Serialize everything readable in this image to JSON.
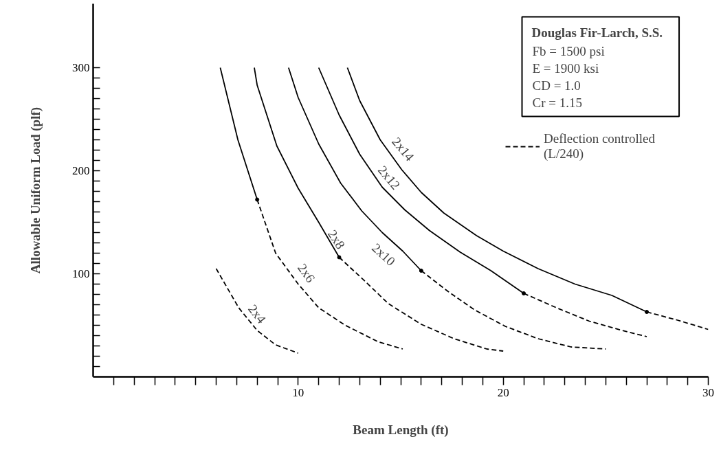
{
  "chart_data": {
    "type": "line",
    "xlabel": "Beam Length (ft)",
    "ylabel": "Allowable Uniform Load (plf)",
    "xlim": [
      0,
      30
    ],
    "ylim": [
      0,
      362
    ],
    "xticks": [
      {
        "value": 1,
        "label": null
      },
      {
        "value": 2,
        "label": null
      },
      {
        "value": 3,
        "label": null
      },
      {
        "value": 4,
        "label": null
      },
      {
        "value": 5,
        "label": null
      },
      {
        "value": 6,
        "label": null
      },
      {
        "value": 7,
        "label": null
      },
      {
        "value": 8,
        "label": null
      },
      {
        "value": 9,
        "label": null
      },
      10,
      {
        "value": 11,
        "label": null
      },
      {
        "value": 12,
        "label": null
      },
      {
        "value": 13,
        "label": null
      },
      {
        "value": 14,
        "label": null
      },
      {
        "value": 15,
        "label": null
      },
      {
        "value": 16,
        "label": null
      },
      {
        "value": 17,
        "label": null
      },
      {
        "value": 18,
        "label": null
      },
      {
        "value": 19,
        "label": null
      },
      20,
      {
        "value": 21,
        "label": null
      },
      {
        "value": 22,
        "label": null
      },
      {
        "value": 23,
        "label": null
      },
      {
        "value": 24,
        "label": null
      },
      {
        "value": 25,
        "label": null
      },
      {
        "value": 26,
        "label": null
      },
      {
        "value": 27,
        "label": null
      },
      {
        "value": 28,
        "label": null
      },
      {
        "value": 29,
        "label": null
      },
      30
    ],
    "yticks": [
      {
        "value": 10,
        "label": null
      },
      {
        "value": 20,
        "label": null
      },
      {
        "value": 30,
        "label": null
      },
      {
        "value": 40,
        "label": null
      },
      {
        "value": 50,
        "label": null
      },
      {
        "value": 60,
        "label": null
      },
      {
        "value": 70,
        "label": null
      },
      {
        "value": 80,
        "label": null
      },
      {
        "value": 90,
        "label": null
      },
      100,
      {
        "value": 110,
        "label": null
      },
      {
        "value": 120,
        "label": null
      },
      {
        "value": 130,
        "label": null
      },
      {
        "value": 140,
        "label": null
      },
      {
        "value": 150,
        "label": null
      },
      {
        "value": 160,
        "label": null
      },
      {
        "value": 170,
        "label": null
      },
      {
        "value": 180,
        "label": null
      },
      {
        "value": 190,
        "label": null
      },
      200,
      {
        "value": 210,
        "label": null
      },
      {
        "value": 220,
        "label": null
      },
      {
        "value": 230,
        "label": null
      },
      {
        "value": 240,
        "label": null
      },
      {
        "value": 250,
        "label": null
      },
      {
        "value": 260,
        "label": null
      },
      {
        "value": 270,
        "label": null
      },
      {
        "value": 280,
        "label": null
      },
      {
        "value": 290,
        "label": null
      },
      300
    ],
    "grid": false,
    "legend": "top right",
    "marker": "none",
    "series": [
      {
        "name": "Deflection controlled\n(L/240)",
        "color": "#000000",
        "line_style": "dashed",
        "x": [
          6.0,
          7.1,
          8.0,
          8.9,
          10.0
        ],
        "values": [
          105,
          67,
          45,
          31,
          23
        ]
      },
      {
        "color": "#000000",
        "line_style": "solid",
        "x": [
          6.2,
          7.06,
          8.0
        ],
        "values": [
          300,
          230,
          172
        ]
      },
      {
        "color": "#000000",
        "line_style": "dashed",
        "x": [
          8.0,
          8.9,
          10.0,
          11.0,
          12.3,
          13.9,
          15.1
        ],
        "values": [
          172,
          120,
          90,
          67,
          50,
          34,
          27
        ]
      },
      {
        "color": "#000000",
        "line_style": "solid",
        "x": [
          7.86,
          8.0,
          8.96,
          10.0,
          11.0,
          12.0
        ],
        "values": [
          300,
          283,
          224,
          183,
          150,
          116
        ]
      },
      {
        "color": "#000000",
        "line_style": "dashed",
        "x": [
          12.0,
          13.3,
          14.4,
          16.0,
          17.6,
          19.2,
          20.0
        ],
        "values": [
          116,
          92,
          71,
          51,
          37,
          27,
          25
        ]
      },
      {
        "color": "#000000",
        "line_style": "solid",
        "x": [
          9.53,
          10.0,
          11.0,
          12.07,
          13.1,
          14.1,
          15.1,
          16.0
        ],
        "values": [
          300,
          271,
          226,
          188,
          161,
          140,
          122,
          103
        ]
      },
      {
        "color": "#000000",
        "line_style": "dashed",
        "x": [
          16.0,
          17.3,
          18.6,
          20.1,
          21.7,
          23.3,
          25.0
        ],
        "values": [
          103,
          83,
          65,
          49,
          37,
          29,
          27
        ]
      },
      {
        "color": "#000000",
        "line_style": "solid",
        "x": [
          11.0,
          12.0,
          13.0,
          14.1,
          15.2,
          16.4,
          17.9,
          19.4,
          21.0
        ],
        "values": [
          300,
          254,
          216,
          184,
          162,
          142,
          121,
          103,
          81
        ]
      },
      {
        "color": "#000000",
        "line_style": "dashed",
        "x": [
          21.0,
          22.6,
          24.2,
          25.8,
          27.0
        ],
        "values": [
          81,
          67,
          54,
          45,
          39
        ]
      },
      {
        "color": "#000000",
        "line_style": "solid",
        "x": [
          12.4,
          13.0,
          14.0,
          15.05,
          16.0,
          17.1,
          18.7,
          20.0,
          21.7,
          23.5,
          25.3,
          27.0
        ],
        "values": [
          300,
          268,
          230,
          201,
          179,
          159,
          137,
          122,
          105,
          90,
          79,
          63
        ]
      },
      {
        "color": "#000000",
        "line_style": "dashed",
        "x": [
          27.0,
          28.5,
          30.0
        ],
        "values": [
          63,
          55,
          46
        ]
      },
      {
        "type": "scatter",
        "marker": "circle",
        "color": "#000000",
        "x": [
          8.0,
          12.0,
          16.0,
          21.0,
          27.0
        ],
        "values": [
          172,
          116,
          103,
          81,
          63
        ]
      }
    ],
    "annotations": [
      {
        "text": "2x4",
        "x": 8.0,
        "y": 45
      },
      {
        "text": "2x6",
        "x": 10.0,
        "y": 90
      },
      {
        "text": "2x8",
        "x": 12.0,
        "y": 116
      },
      {
        "text": "2x10",
        "x": 14.1,
        "y": 140
      },
      {
        "text": "2x12",
        "x": 14.1,
        "y": 184
      },
      {
        "text": "2x14",
        "x": 15.05,
        "y": 201
      },
      "Douglas Fir-Larch, S.S.",
      "Fb = 1500 psi",
      "E   = 1900 ksi",
      "CD = 1.0",
      "Cr = 1.15"
    ]
  }
}
